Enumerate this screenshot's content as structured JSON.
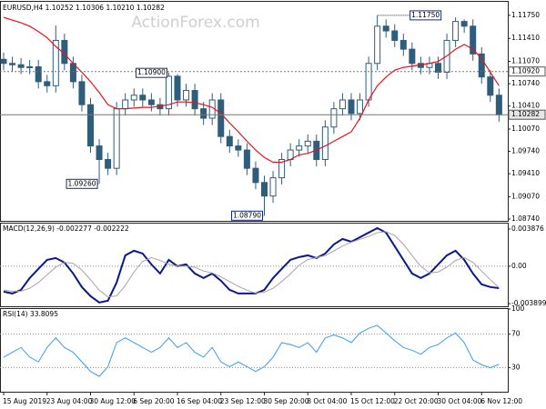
{
  "chart_data": [
    {
      "type": "candlestick",
      "title": "EURUSD,H4 1.10252 1.10306 1.10210 1.10282",
      "watermark": "ActionForex.com",
      "color": "#2f5d7c",
      "categories": [
        "15 Aug 2019",
        null,
        null,
        null,
        null,
        "23 Aug 04:00",
        null,
        null,
        null,
        null,
        "30 Aug 12:00",
        null,
        null,
        null,
        null,
        "6 Sep 20:00",
        null,
        null,
        null,
        null,
        "16 Sep 04:00",
        null,
        null,
        null,
        null,
        "23 Sep 12:00",
        null,
        null,
        null,
        null,
        "30 Sep 20:00",
        null,
        null,
        null,
        null,
        "8 Oct 04:00",
        null,
        null,
        null,
        null,
        "15 Oct 12:00",
        null,
        null,
        null,
        null,
        "22 Oct 20:00",
        null,
        null,
        null,
        null,
        "30 Oct 04:00",
        null,
        null,
        null,
        null,
        "6 Nov 12:00",
        null,
        null
      ],
      "open": [
        1.111,
        1.1104,
        1.1102,
        1.1098,
        1.1099,
        1.1077,
        1.1071,
        1.1138,
        1.1104,
        1.1077,
        1.1043,
        1.0982,
        1.0962,
        1.0949,
        1.1037,
        1.105,
        1.1057,
        1.105,
        1.1043,
        1.1037,
        1.1085,
        1.105,
        1.1064,
        1.1037,
        1.1023,
        1.105,
        1.0996,
        1.0982,
        1.0976,
        1.0949,
        1.0928,
        1.0908,
        1.0935,
        1.0962,
        1.0976,
        1.0982,
        1.0989,
        1.0962,
        1.101,
        1.1037,
        1.105,
        1.103,
        1.105,
        1.1104,
        1.1159,
        1.1152,
        1.1138,
        1.1125,
        1.1104,
        1.1098,
        1.1104,
        1.1091,
        1.1138,
        1.1166,
        1.1159,
        1.1118,
        1.1084,
        1.1057
      ],
      "high": [
        1.112,
        1.1114,
        1.1112,
        1.1109,
        1.1109,
        1.1087,
        1.116,
        1.1148,
        1.1114,
        1.1087,
        1.1053,
        1.0992,
        1.0972,
        1.1047,
        1.106,
        1.1067,
        1.1067,
        1.106,
        1.1053,
        1.109,
        1.1088,
        1.1074,
        1.1074,
        1.1047,
        1.106,
        1.106,
        1.1006,
        1.0992,
        1.0986,
        1.0959,
        1.0938,
        1.0945,
        1.0972,
        1.0986,
        1.0992,
        1.0999,
        1.0999,
        1.102,
        1.1047,
        1.106,
        1.106,
        1.106,
        1.1114,
        1.1175,
        1.1169,
        1.1162,
        1.1148,
        1.1135,
        1.1114,
        1.1114,
        1.1114,
        1.1148,
        1.1172,
        1.1169,
        1.1169,
        1.1128,
        1.1094,
        1.1067
      ],
      "low": [
        1.1094,
        1.1092,
        1.1088,
        1.1088,
        1.1067,
        1.1061,
        1.1061,
        1.1094,
        1.1067,
        1.1033,
        1.0972,
        1.0926,
        1.0939,
        1.0939,
        1.1027,
        1.104,
        1.104,
        1.1033,
        1.1027,
        1.1027,
        1.104,
        1.104,
        1.1027,
        1.1013,
        1.1013,
        1.0986,
        1.0972,
        1.0966,
        1.0939,
        1.0918,
        1.0879,
        1.0898,
        1.0925,
        1.0952,
        1.0966,
        1.0972,
        1.0952,
        1.0952,
        1.1,
        1.1027,
        1.102,
        1.102,
        1.104,
        1.1094,
        1.1142,
        1.1128,
        1.1115,
        1.1094,
        1.1088,
        1.1088,
        1.1081,
        1.1081,
        1.1128,
        1.1149,
        1.1108,
        1.1074,
        1.1047,
        1.1018
      ],
      "close": [
        1.1104,
        1.1102,
        1.1098,
        1.1099,
        1.1077,
        1.1071,
        1.1138,
        1.1104,
        1.1077,
        1.1043,
        1.0982,
        1.0962,
        1.0949,
        1.1037,
        1.105,
        1.1057,
        1.105,
        1.1043,
        1.1037,
        1.1085,
        1.105,
        1.1064,
        1.1037,
        1.1023,
        1.105,
        1.0996,
        1.0982,
        1.0976,
        1.0949,
        1.0928,
        1.0908,
        1.0935,
        1.0962,
        1.0976,
        1.0982,
        1.0989,
        1.0962,
        1.101,
        1.1037,
        1.105,
        1.103,
        1.105,
        1.1104,
        1.1159,
        1.1152,
        1.1138,
        1.1125,
        1.1104,
        1.1098,
        1.1104,
        1.1091,
        1.1138,
        1.1166,
        1.1159,
        1.1118,
        1.1084,
        1.1057,
        1.10282
      ],
      "overlay": {
        "color": "#e8141b",
        "values": [
          1.1172,
          1.1168,
          1.1164,
          1.1159,
          1.1151,
          1.1142,
          1.1129,
          1.1118,
          1.1104,
          1.1091,
          1.1077,
          1.1061,
          1.1043,
          1.1037,
          1.1037,
          1.1038,
          1.1039,
          1.1039,
          1.1041,
          1.1043,
          1.1047,
          1.1047,
          1.1046,
          1.1043,
          1.1039,
          1.103,
          1.1016,
          1.1003,
          1.0989,
          1.0976,
          1.0965,
          1.0958,
          1.0958,
          1.0962,
          1.0969,
          1.0971,
          1.0976,
          1.0982,
          1.0989,
          1.0996,
          1.1003,
          1.1023,
          1.105,
          1.1071,
          1.1084,
          1.1094,
          1.1098,
          1.11,
          1.1102,
          1.1104,
          1.1107,
          1.1115,
          1.1125,
          1.1132,
          1.1125,
          1.1111,
          1.1091,
          1.1071
        ]
      },
      "ylim": [
        1.087,
        1.1195
      ],
      "yticks": [
        {
          "value": 1.1175,
          "label": "1.11750"
        },
        {
          "value": 1.1141,
          "label": "1.11410"
        },
        {
          "value": 1.1107,
          "label": "1.11070"
        },
        {
          "value": 1.1074,
          "label": "1.10740"
        },
        {
          "value": 1.1041,
          "label": "1.10410"
        },
        {
          "value": 1.1007,
          "label": "1.10070"
        },
        {
          "value": 1.0974,
          "label": "1.09740"
        },
        {
          "value": 1.0941,
          "label": "1.09410"
        },
        {
          "value": 1.0907,
          "label": "1.09070"
        },
        {
          "value": 1.0874,
          "label": "1.08740"
        }
      ],
      "annotations": [
        {
          "value": 1.0926,
          "label": "1.09260"
        },
        {
          "value": 1.109,
          "label": "1.10900"
        },
        {
          "value": 1.0879,
          "label": "1.08790"
        },
        {
          "value": 1.1175,
          "label": "1.11750"
        }
      ],
      "price_lines": [
        {
          "value": 1.1092,
          "label": "1.10920",
          "style": "dotted"
        },
        {
          "value": 1.10282,
          "label": "1.10282",
          "style": "solid"
        }
      ]
    },
    {
      "type": "line",
      "title": "MACD(12,26,9) -0.002277 -0.002222",
      "zero_line": true,
      "grid": false,
      "series": [
        {
          "color": "#0a1a8c",
          "width": 2,
          "values": [
            -0.00265,
            -0.00284,
            -0.00246,
            -0.00123,
            -0.00028,
            0.00066,
            0.00085,
            0.00038,
            -0.00076,
            -0.00217,
            -0.00312,
            -0.00378,
            -0.00359,
            -0.0017,
            0.00113,
            0.00161,
            0.00132,
            0.00019,
            -0.00076,
            0.00066,
            0,
            0.00019,
            -0.00076,
            -0.00123,
            -0.00076,
            -0.00151,
            -0.00246,
            -0.00284,
            -0.00284,
            -0.00284,
            -0.00246,
            -0.00123,
            -0.00028,
            0.00066,
            0.00095,
            0.00113,
            0.00085,
            0.00132,
            0.00227,
            0.00284,
            0.00255,
            0.00302,
            0.0035,
            0.00397,
            0.0035,
            0.00208,
            0.00066,
            -0.00076,
            -0.00123,
            -0.00076,
            0.00019,
            0.00113,
            0.00161,
            0.00066,
            -0.00076,
            -0.00189,
            -0.00217,
            -0.00228
          ]
        },
        {
          "color": "#b0a0a0",
          "width": 1,
          "values": [
            -0.0025,
            -0.0026,
            -0.0026,
            -0.0023,
            -0.0017,
            -0.0009,
            -0.0001,
            0.0004,
            0.0003,
            -0.0004,
            -0.0014,
            -0.0025,
            -0.0032,
            -0.0031,
            -0.002,
            -0.0006,
            0.0005,
            0.0009,
            0.0006,
            0.0002,
            0,
            0,
            -0.0001,
            -0.0005,
            -0.0007,
            -0.0011,
            -0.0016,
            -0.0021,
            -0.0025,
            -0.0028,
            -0.0027,
            -0.0023,
            -0.0016,
            -0.0008,
            0.0001,
            0.0007,
            0.0009,
            0.0011,
            0.0016,
            0.0021,
            0.0025,
            0.0028,
            0.0031,
            0.0035,
            0.0036,
            0.0032,
            0.0023,
            0.0011,
            0,
            -0.0007,
            -0.0006,
            -0.0001,
            0.0006,
            0.0009,
            0.0004,
            -0.0005,
            -0.0014,
            -0.00222
          ]
        }
      ],
      "ylim": [
        -0.00427,
        0.00444
      ],
      "yticks": [
        0.003876,
        {
          "value": 0,
          "label": "0.00"
        },
        -0.003899
      ]
    },
    {
      "type": "line",
      "title": "RSI(14) 33.8095",
      "zero_line": false,
      "grid": true,
      "series": [
        {
          "color": "#3a9cf0",
          "width": 1,
          "values": [
            42.5,
            48.3,
            54.0,
            42.5,
            36.8,
            54.0,
            65.5,
            54.0,
            48.3,
            36.8,
            25.3,
            19.5,
            31.0,
            59.8,
            65.5,
            59.8,
            54.0,
            48.3,
            54.0,
            65.5,
            54.0,
            59.8,
            48.3,
            42.5,
            54.0,
            36.8,
            31.0,
            36.8,
            31.0,
            25.3,
            31.0,
            42.5,
            59.8,
            57.5,
            54.0,
            59.8,
            48.3,
            65.5,
            69.0,
            65.5,
            59.8,
            71.3,
            77.0,
            80.5,
            71.3,
            62.1,
            54.0,
            50.6,
            46.0,
            54.0,
            57.5,
            65.5,
            71.3,
            59.8,
            39.1,
            33.3,
            29.9,
            33.8
          ]
        }
      ],
      "ylim": [
        0,
        100
      ],
      "yticks": [
        100,
        70,
        30
      ]
    }
  ]
}
